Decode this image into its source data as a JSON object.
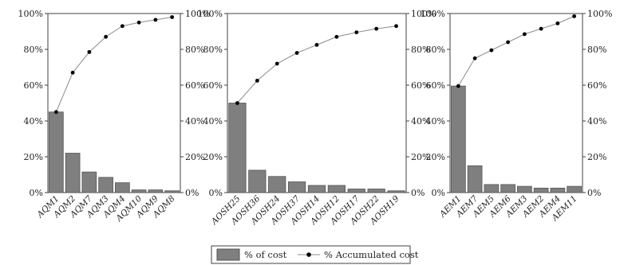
{
  "chart_data": [
    {
      "type": "bar",
      "categories": [
        "AQM1",
        "AQM2",
        "AQM7",
        "AQM3",
        "AQM4",
        "AQM10",
        "AQM9",
        "AQM8"
      ],
      "series": [
        {
          "name": "% of cost",
          "type": "bar",
          "values": [
            45,
            22,
            11.5,
            8.5,
            5.5,
            1.5,
            1.5,
            1
          ]
        },
        {
          "name": "% Accumulated cost",
          "type": "line",
          "values": [
            45,
            67,
            78.5,
            87,
            93,
            95,
            96.5,
            98
          ]
        }
      ],
      "ylim": [
        0,
        100
      ],
      "left_ticks": [
        "0%",
        "20%",
        "40%",
        "60%",
        "80%",
        "100%"
      ],
      "right_ticks": [
        "0%",
        "20%",
        "40%",
        "60%",
        "80%",
        "100%"
      ]
    },
    {
      "type": "bar",
      "categories": [
        "AOSH25",
        "AOSH36",
        "AOSH24",
        "AOSH37",
        "AOSH14",
        "AOSH12",
        "AOSH17",
        "AOSH22",
        "AOSH19"
      ],
      "series": [
        {
          "name": "% of cost",
          "type": "bar",
          "values": [
            50,
            12.5,
            9,
            6,
            4,
            4,
            2,
            2,
            1
          ]
        },
        {
          "name": "% Accumulated cost",
          "type": "line",
          "values": [
            50,
            62.5,
            72,
            78,
            82.5,
            87,
            89.5,
            91.5,
            93
          ]
        }
      ],
      "ylim": [
        0,
        100
      ],
      "left_ticks": [
        "0%",
        "20%",
        "40%",
        "60%",
        "80%",
        "100%"
      ],
      "right_ticks": [
        "0%",
        "20%",
        "40%",
        "60%",
        "80%",
        "100%"
      ]
    },
    {
      "type": "bar",
      "categories": [
        "AEM1",
        "AEM7",
        "AEM5",
        "AEM6",
        "AEM3",
        "AEM2",
        "AEM4",
        "AEM11"
      ],
      "series": [
        {
          "name": "% of cost",
          "type": "bar",
          "values": [
            59.5,
            15,
            4.5,
            4.5,
            3.5,
            2.5,
            2.5,
            3.5
          ]
        },
        {
          "name": "% Accumulated cost",
          "type": "line",
          "values": [
            59.5,
            75,
            79.5,
            84,
            88.5,
            91.5,
            94.5,
            98.5
          ]
        }
      ],
      "ylim": [
        0,
        100
      ],
      "left_ticks": [
        "0%",
        "20%",
        "40%",
        "60%",
        "80%",
        "100%"
      ],
      "right_ticks": [
        "0%",
        "20%",
        "40%",
        "60%",
        "80%",
        "100%"
      ]
    }
  ],
  "legend": {
    "bar_label": "% of cost",
    "line_label": "% Accumulated cost"
  },
  "colors": {
    "bar_fill": "#7f7f7f",
    "bar_stroke": "#555555",
    "line": "#8c8c8c",
    "marker": "#000000",
    "axis": "#404040"
  }
}
